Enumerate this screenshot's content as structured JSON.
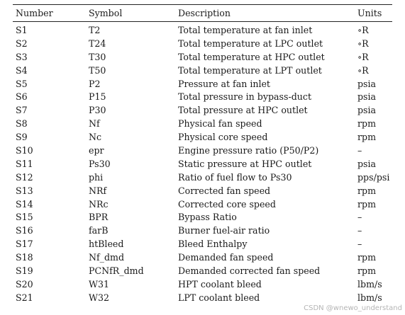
{
  "table": {
    "columns": [
      "Number",
      "Symbol",
      "Description",
      "Units"
    ],
    "rows": [
      [
        "S1",
        "T2",
        "Total temperature at fan inlet",
        "∘R"
      ],
      [
        "S2",
        "T24",
        "Total temperature at LPC outlet",
        "∘R"
      ],
      [
        "S3",
        "T30",
        "Total temperature at HPC outlet",
        "∘R"
      ],
      [
        "S4",
        "T50",
        "Total temperature at LPT outlet",
        "∘R"
      ],
      [
        "S5",
        "P2",
        "Pressure at fan inlet",
        "psia"
      ],
      [
        "S6",
        "P15",
        "Total pressure in bypass-duct",
        "psia"
      ],
      [
        "S7",
        "P30",
        "Total pressure at HPC outlet",
        "psia"
      ],
      [
        "S8",
        "Nf",
        "Physical fan speed",
        "rpm"
      ],
      [
        "S9",
        "Nc",
        "Physical core speed",
        "rpm"
      ],
      [
        "S10",
        "epr",
        "Engine pressure ratio (P50/P2)",
        "–"
      ],
      [
        "S11",
        "Ps30",
        "Static pressure at HPC outlet",
        "psia"
      ],
      [
        "S12",
        "phi",
        "Ratio of fuel flow to Ps30",
        "pps/psi"
      ],
      [
        "S13",
        "NRf",
        "Corrected fan speed",
        "rpm"
      ],
      [
        "S14",
        "NRc",
        "Corrected core speed",
        "rpm"
      ],
      [
        "S15",
        "BPR",
        "Bypass Ratio",
        "–"
      ],
      [
        "S16",
        "farB",
        "Burner fuel-air ratio",
        "–"
      ],
      [
        "S17",
        "htBleed",
        "Bleed Enthalpy",
        "–"
      ],
      [
        "S18",
        "Nf_dmd",
        "Demanded fan speed",
        "rpm"
      ],
      [
        "S19",
        "PCNfR_dmd",
        "Demanded corrected fan speed",
        "rpm"
      ],
      [
        "S20",
        "W31",
        "HPT coolant bleed",
        "lbm/s"
      ],
      [
        "S21",
        "W32",
        "LPT coolant bleed",
        "lbm/s"
      ]
    ]
  },
  "watermark": "CSDN @wnewo_understand"
}
